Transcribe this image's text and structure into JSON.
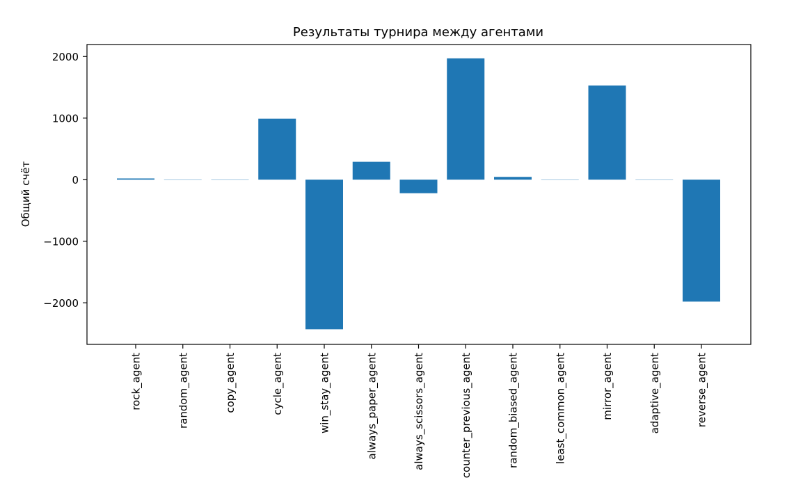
{
  "chart_data": {
    "type": "bar",
    "title": "Результаты турнира между агентами",
    "xlabel": "",
    "ylabel": "Общий счёт",
    "categories": [
      "rock_agent",
      "random_agent",
      "copy_agent",
      "cycle_agent",
      "win_stay_agent",
      "always_paper_agent",
      "always_scissors_agent",
      "counter_previous_agent",
      "random_biased_agent",
      "least_common_agent",
      "mirror_agent",
      "adaptive_agent",
      "reverse_agent"
    ],
    "values": [
      20,
      0,
      0,
      990,
      -2430,
      290,
      -220,
      1970,
      45,
      0,
      1530,
      0,
      -1980
    ],
    "yticks": [
      -2000,
      -1000,
      0,
      1000,
      2000
    ],
    "ytick_labels": [
      "−2000",
      "−1000",
      "0",
      "1000",
      "2000"
    ],
    "ylim": [
      -2675,
      2195
    ],
    "bar_color": "#1f77b4",
    "grid": false
  }
}
